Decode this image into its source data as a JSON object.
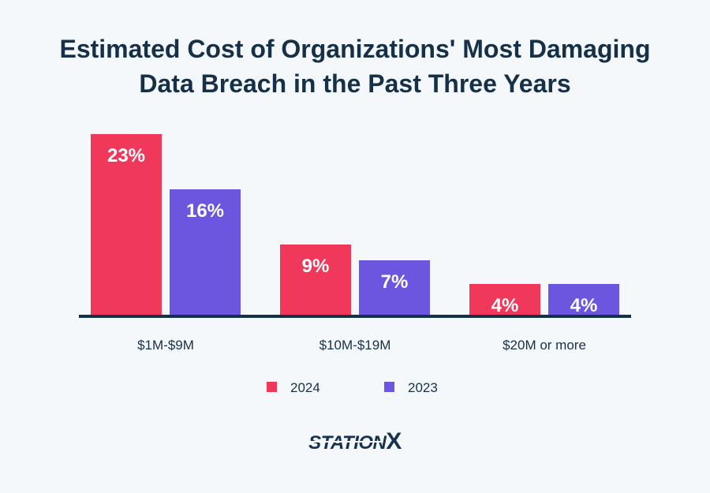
{
  "title_lines": [
    "Estimated Cost of Organizations' Most Damaging",
    "Data Breach in the Past Three Years"
  ],
  "logo": {
    "text": "STATION",
    "accent": "X"
  },
  "colors": {
    "s2024": "#f0385a",
    "s2023": "#6c56e0",
    "axis": "#163048"
  },
  "chart_data": {
    "type": "bar",
    "title": "Estimated Cost of Organizations' Most Damaging Data Breach in the Past Three Years",
    "categories": [
      "$1M-$9M",
      "$10M-$19M",
      "$20M or more"
    ],
    "series": [
      {
        "name": "2024",
        "values": [
          23,
          9,
          4
        ],
        "labels": [
          "23%",
          "9%",
          "4%"
        ],
        "color": "#f0385a"
      },
      {
        "name": "2023",
        "values": [
          16,
          7,
          4
        ],
        "labels": [
          "16%",
          "7%",
          "4%"
        ],
        "color": "#6c56e0"
      }
    ],
    "ylim": [
      0,
      23
    ],
    "grid": false,
    "legend": "bottom"
  }
}
